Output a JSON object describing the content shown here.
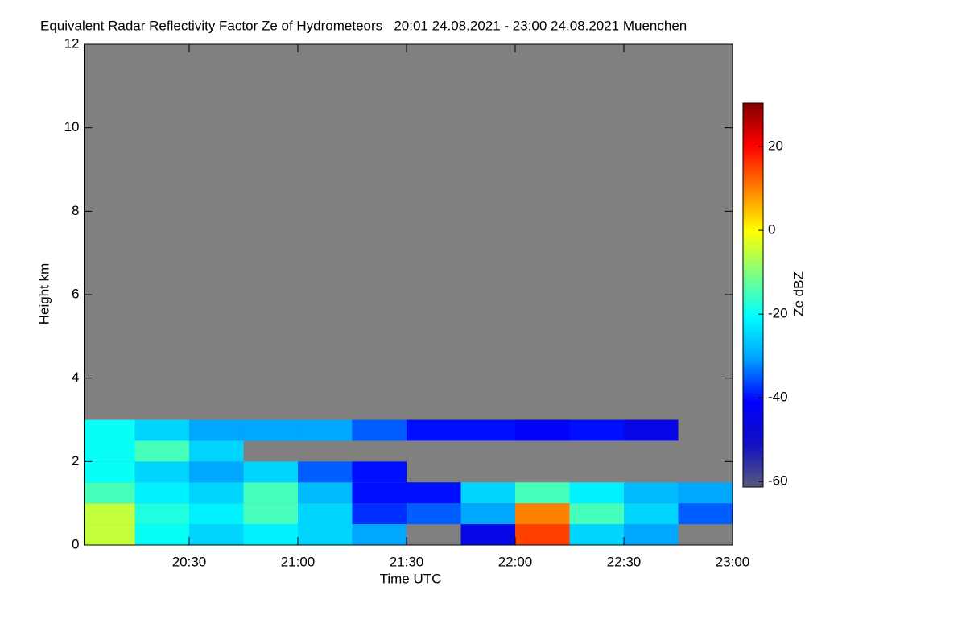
{
  "chart_data": {
    "type": "heatmap",
    "title": "Equivalent Radar Reflectivity Factor Ze of Hydrometeors   20:01 24.08.2021 - 23:00 24.08.2021 Muenchen",
    "xlabel": "Time UTC",
    "ylabel": "Height km",
    "colorbar_label": "Ze dBZ",
    "background_color": "#808080",
    "xlim": [
      20.0167,
      23.0
    ],
    "xticks": [
      {
        "value": 20.5,
        "label": "20:30"
      },
      {
        "value": 21.0,
        "label": "21:00"
      },
      {
        "value": 21.5,
        "label": "21:30"
      },
      {
        "value": 22.0,
        "label": "22:00"
      },
      {
        "value": 22.5,
        "label": "22:30"
      },
      {
        "value": 23.0,
        "label": "23:00"
      }
    ],
    "ylim": [
      0,
      12
    ],
    "yticks": [
      0,
      2,
      4,
      6,
      8,
      10,
      12
    ],
    "zlim": [
      -61.3,
      30.4
    ],
    "zticks": [
      -60,
      -40,
      -20,
      0,
      20
    ],
    "colormap": [
      "#5a5a80",
      "#1010c0",
      "#0000ff",
      "#00a0ff",
      "#00ffff",
      "#80ff80",
      "#ffff00",
      "#ff8000",
      "#ff0000",
      "#800000"
    ],
    "xbins": [
      20.0,
      20.25,
      20.5,
      20.75,
      21.0,
      21.25,
      21.5,
      21.75,
      22.0,
      22.25,
      22.5,
      22.75,
      23.0
    ],
    "ybins": [
      0,
      0.5,
      1.0,
      1.5,
      2.0,
      2.5,
      3.0
    ],
    "z": [
      [
        -5,
        -20,
        -25,
        -22,
        -25,
        -30,
        null,
        -45,
        15,
        -25,
        -30,
        null
      ],
      [
        -5,
        -18,
        -22,
        -15,
        -25,
        -38,
        -35,
        -30,
        10,
        -15,
        -25,
        -35
      ],
      [
        -15,
        -22,
        -25,
        -15,
        -28,
        -40,
        -40,
        -25,
        -15,
        -22,
        -28,
        -30
      ],
      [
        -20,
        -25,
        -30,
        -25,
        -35,
        -40,
        null,
        null,
        null,
        null,
        null,
        null
      ],
      [
        -20,
        -15,
        -25,
        null,
        null,
        null,
        null,
        null,
        null,
        null,
        null,
        null
      ],
      [
        -20,
        -25,
        -30,
        -30,
        -30,
        -35,
        -40,
        -40,
        -42,
        -40,
        -45,
        null
      ]
    ]
  }
}
